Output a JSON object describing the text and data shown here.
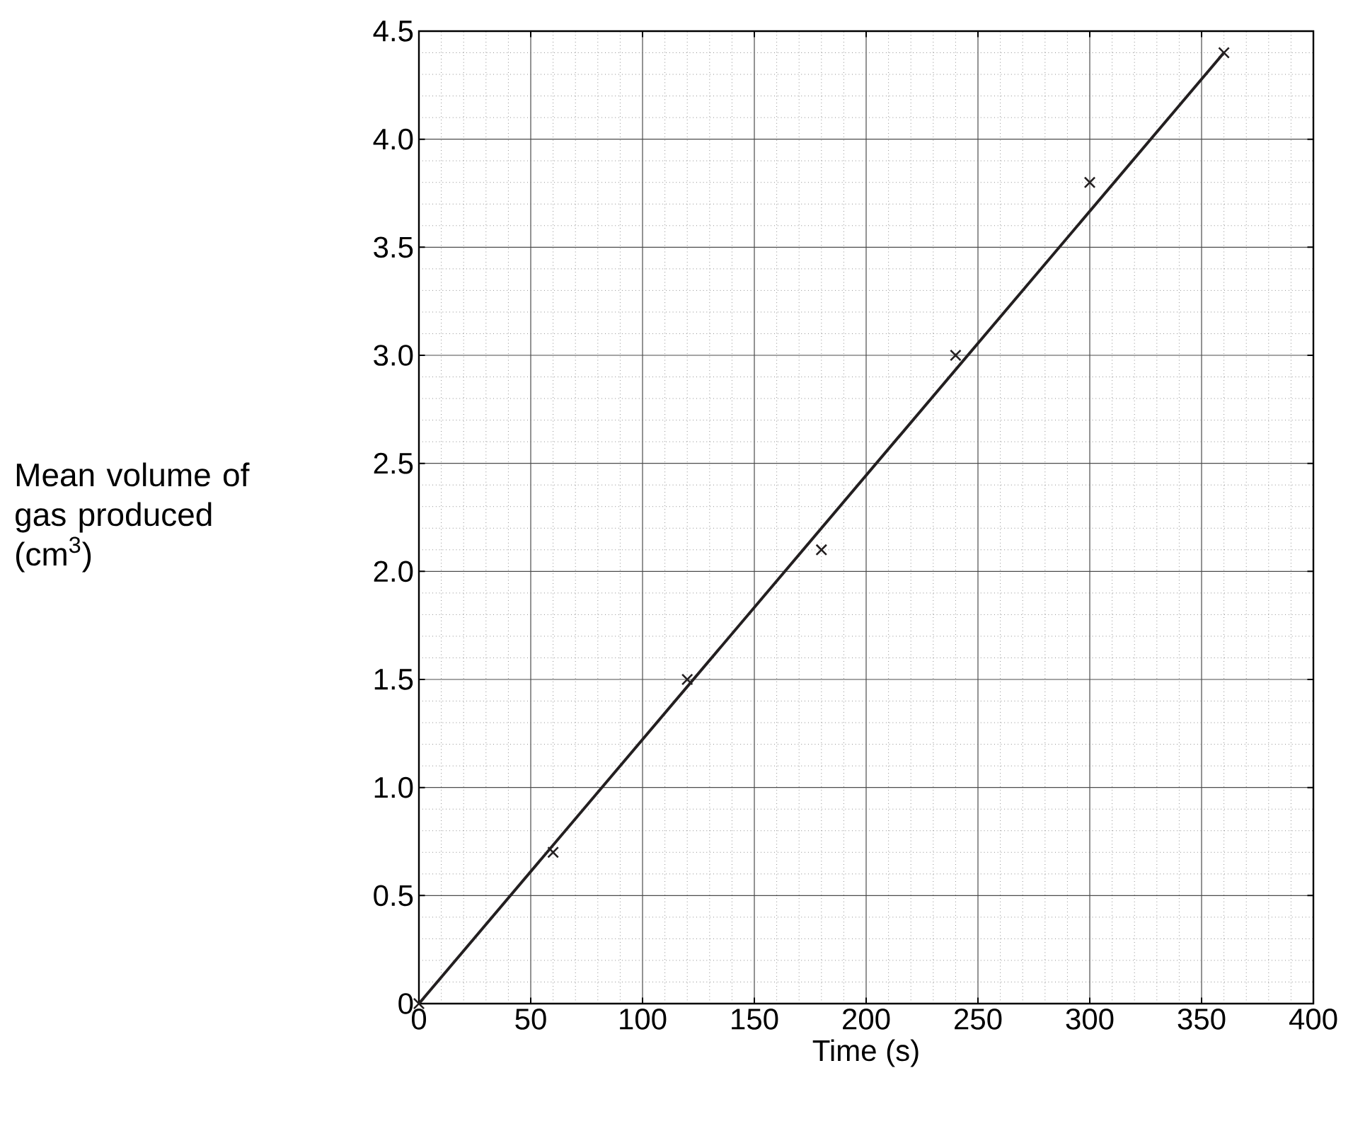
{
  "chart_data": {
    "type": "scatter",
    "xlabel": "Time (s)",
    "ylabel": "Mean volume of gas produced (cm$^{3}$)",
    "xlim": [
      0,
      400
    ],
    "ylim": [
      0,
      4.5
    ],
    "xticks": [
      0,
      50,
      100,
      150,
      200,
      250,
      300,
      350,
      400
    ],
    "yticks": [
      0,
      {
        "value": 0.5,
        "label": "0.5"
      },
      {
        "value": 1,
        "label": "1.0"
      },
      {
        "value": 1.5,
        "label": "1.5"
      },
      {
        "value": 2,
        "label": "2.0"
      },
      {
        "value": 2.5,
        "label": "2.5"
      },
      {
        "value": 3,
        "label": "3.0"
      },
      {
        "value": 3.5,
        "label": "3.5"
      },
      {
        "value": 4,
        "label": "4.0"
      },
      {
        "value": 4.5,
        "label": "4.5"
      }
    ],
    "grid": true,
    "series": [
      {
        "color": "#231f20",
        "marker": "cross",
        "x": [
          0,
          60,
          120,
          180,
          240,
          300,
          360
        ],
        "values": [
          0,
          0.7,
          1.5,
          2.1,
          3.0,
          3.8,
          4.4
        ]
      },
      {
        "type": "line",
        "color": "#231f20",
        "marker": "none",
        "line_style": "solid",
        "x": [
          0,
          360
        ],
        "values": [
          0,
          4.4
        ]
      }
    ]
  }
}
